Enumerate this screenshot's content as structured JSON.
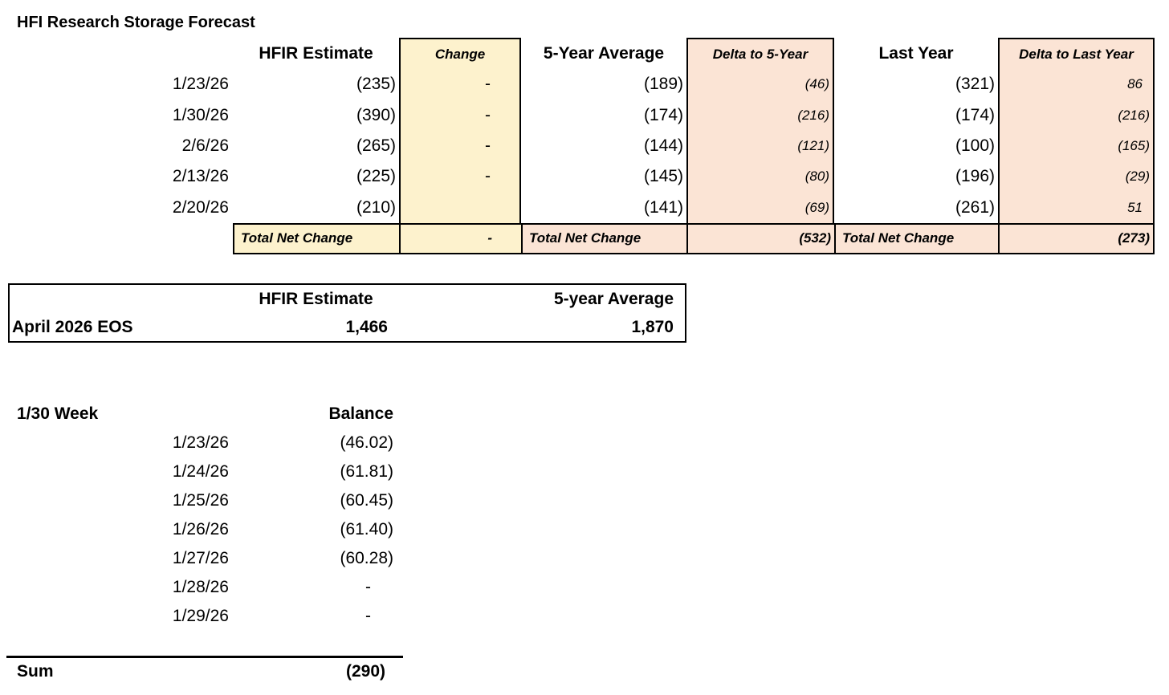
{
  "title": "HFI Research Storage Forecast",
  "colors": {
    "highlight_yellow": "#FDF2CD",
    "highlight_pink": "#FBE4D5",
    "border": "#000000"
  },
  "forecast_table": {
    "headers": {
      "estimate": "HFIR Estimate",
      "change": "Change",
      "five_year": "5-Year Average",
      "delta_five": "Delta to 5-Year",
      "last_year": "Last Year",
      "delta_last": "Delta to Last Year"
    },
    "rows": [
      {
        "date": "1/23/26",
        "estimate": "(235)",
        "change": "-",
        "five_year": "(189)",
        "delta_five": "(46)",
        "last_year": "(321)",
        "delta_last": "86"
      },
      {
        "date": "1/30/26",
        "estimate": "(390)",
        "change": "-",
        "five_year": "(174)",
        "delta_five": "(216)",
        "last_year": "(174)",
        "delta_last": "(216)"
      },
      {
        "date": "2/6/26",
        "estimate": "(265)",
        "change": "-",
        "five_year": "(144)",
        "delta_five": "(121)",
        "last_year": "(100)",
        "delta_last": "(165)"
      },
      {
        "date": "2/13/26",
        "estimate": "(225)",
        "change": "-",
        "five_year": "(145)",
        "delta_five": "(80)",
        "last_year": "(196)",
        "delta_last": "(29)"
      },
      {
        "date": "2/20/26",
        "estimate": "(210)",
        "change": "",
        "five_year": "(141)",
        "delta_five": "(69)",
        "last_year": "(261)",
        "delta_last": "51"
      }
    ],
    "totals": {
      "label": "Total Net Change",
      "change": "-",
      "delta_five": "(532)",
      "delta_last": "(273)"
    }
  },
  "eos_table": {
    "headers": {
      "estimate": "HFIR Estimate",
      "five_year": "5-year Average"
    },
    "row": {
      "label": "April 2026 EOS",
      "estimate": "1,466",
      "five_year": "1,870"
    }
  },
  "week_table": {
    "title": "1/30 Week",
    "balance_header": "Balance",
    "rows": [
      {
        "date": "1/23/26",
        "balance": "(46.02)"
      },
      {
        "date": "1/24/26",
        "balance": "(61.81)"
      },
      {
        "date": "1/25/26",
        "balance": "(60.45)"
      },
      {
        "date": "1/26/26",
        "balance": "(61.40)"
      },
      {
        "date": "1/27/26",
        "balance": "(60.28)"
      },
      {
        "date": "1/28/26",
        "balance": "-"
      },
      {
        "date": "1/29/26",
        "balance": "-"
      }
    ],
    "sum": {
      "label": "Sum",
      "value": "(290)"
    }
  }
}
